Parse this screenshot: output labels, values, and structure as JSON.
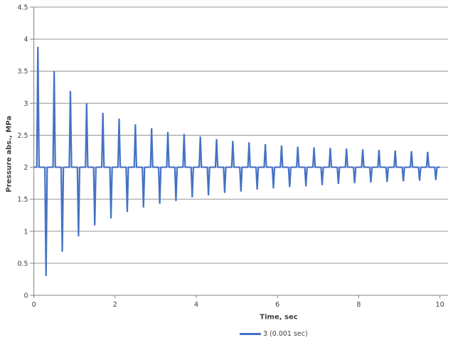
{
  "chart_data": {
    "type": "line",
    "title": "",
    "xlabel": "Time, sec",
    "ylabel": "Pressure abs., MPa",
    "xlim": [
      0,
      10.2
    ],
    "ylim": [
      0,
      4.5
    ],
    "x_ticks": [
      0,
      2,
      4,
      6,
      8,
      10
    ],
    "y_ticks": [
      0,
      0.5,
      1,
      1.5,
      2,
      2.5,
      3,
      3.5,
      4,
      4.5
    ],
    "grid": true,
    "legend_position": "bottom-center",
    "baseline_mpa": 2.0,
    "t_start": 0,
    "t_end": 10.0,
    "series": [
      {
        "name": "3 (0.001 sec)",
        "color": "#4472C4",
        "spike_half_width_sec": 0.028,
        "spikes": [
          [
            0.1,
            3.88
          ],
          [
            0.3,
            0.3
          ],
          [
            0.5,
            3.5
          ],
          [
            0.7,
            0.68
          ],
          [
            0.9,
            3.19
          ],
          [
            1.1,
            0.92
          ],
          [
            1.3,
            3.0
          ],
          [
            1.5,
            1.09
          ],
          [
            1.7,
            2.85
          ],
          [
            1.9,
            1.2
          ],
          [
            2.1,
            2.76
          ],
          [
            2.3,
            1.3
          ],
          [
            2.5,
            2.67
          ],
          [
            2.7,
            1.37
          ],
          [
            2.9,
            2.61
          ],
          [
            3.1,
            1.43
          ],
          [
            3.3,
            2.55
          ],
          [
            3.5,
            1.47
          ],
          [
            3.7,
            2.52
          ],
          [
            3.9,
            1.53
          ],
          [
            4.1,
            2.48
          ],
          [
            4.3,
            1.56
          ],
          [
            4.5,
            2.44
          ],
          [
            4.7,
            1.6
          ],
          [
            4.9,
            2.41
          ],
          [
            5.1,
            1.62
          ],
          [
            5.3,
            2.39
          ],
          [
            5.5,
            1.65
          ],
          [
            5.7,
            2.36
          ],
          [
            5.9,
            1.67
          ],
          [
            6.1,
            2.34
          ],
          [
            6.3,
            1.69
          ],
          [
            6.5,
            2.32
          ],
          [
            6.7,
            1.7
          ],
          [
            6.9,
            2.31
          ],
          [
            7.1,
            1.72
          ],
          [
            7.3,
            2.3
          ],
          [
            7.5,
            1.74
          ],
          [
            7.7,
            2.29
          ],
          [
            7.9,
            1.75
          ],
          [
            8.1,
            2.28
          ],
          [
            8.3,
            1.76
          ],
          [
            8.5,
            2.27
          ],
          [
            8.7,
            1.77
          ],
          [
            8.9,
            2.26
          ],
          [
            9.1,
            1.78
          ],
          [
            9.3,
            2.25
          ],
          [
            9.5,
            1.79
          ],
          [
            9.7,
            2.24
          ],
          [
            9.9,
            1.8
          ]
        ]
      }
    ],
    "colors": {
      "series": "#4472C4",
      "gridline": "#969696",
      "axis": "#808080",
      "text": "#404040"
    }
  }
}
